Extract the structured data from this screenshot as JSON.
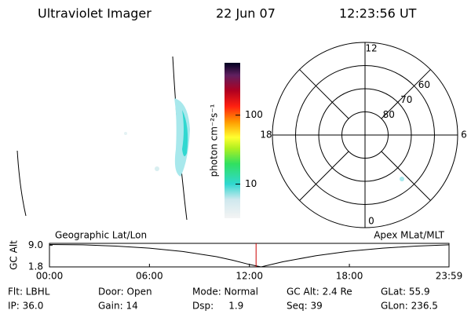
{
  "header": {
    "title": "Ultraviolet Imager",
    "date": "22 Jun 07",
    "time": "12:23:56 UT"
  },
  "colorbar": {
    "label": "photon cm⁻²s⁻¹",
    "log": true,
    "lim": [
      3.2,
      575
    ],
    "ticks": [
      10,
      100
    ]
  },
  "polar": {
    "rlim": [
      90,
      50
    ],
    "lat_ticks": [
      80,
      70,
      60
    ],
    "mlt_ticks": [
      12,
      18,
      6,
      0
    ]
  },
  "chart_data": {
    "type": "line",
    "ylabel": "GC Alt",
    "left_label": "Geographic Lat/Lon",
    "right_label": "Apex MLat/MLT",
    "x": [
      0,
      2,
      4,
      6,
      8,
      10,
      11,
      12,
      12.7,
      14,
      16,
      18,
      20,
      22,
      23.98
    ],
    "values": [
      9.2,
      9.1,
      8.7,
      8.0,
      6.9,
      5.2,
      4.0,
      2.6,
      1.8,
      3.5,
      5.5,
      7.0,
      8.0,
      8.7,
      9.1
    ],
    "color": "#000000",
    "marker_x": 12.4,
    "marker_color": "#cc0000",
    "xlim": [
      0,
      23.98
    ],
    "ylim": [
      1.8,
      9.6
    ],
    "xticks": [
      {
        "value": 0,
        "label": "00:00"
      },
      {
        "value": 6,
        "label": "06:00"
      },
      {
        "value": 12,
        "label": "12:00"
      },
      {
        "value": 18,
        "label": "18:00"
      },
      {
        "value": 23.98,
        "label": "23:59"
      }
    ],
    "yticks": [
      {
        "value": 9.0,
        "label": "9.0"
      },
      {
        "value": 1.8,
        "label": "1.8"
      }
    ]
  },
  "footer": {
    "rows": [
      [
        "Flt: LBHL",
        "Door: Open",
        "Mode: Normal",
        "GC Alt: 2.4 Re",
        "GLat: 55.9"
      ],
      [
        "IP: 36.0",
        "Gain: 14",
        "Dsp:     1.9",
        "Seq: 39",
        "GLon: 236.5"
      ]
    ]
  }
}
